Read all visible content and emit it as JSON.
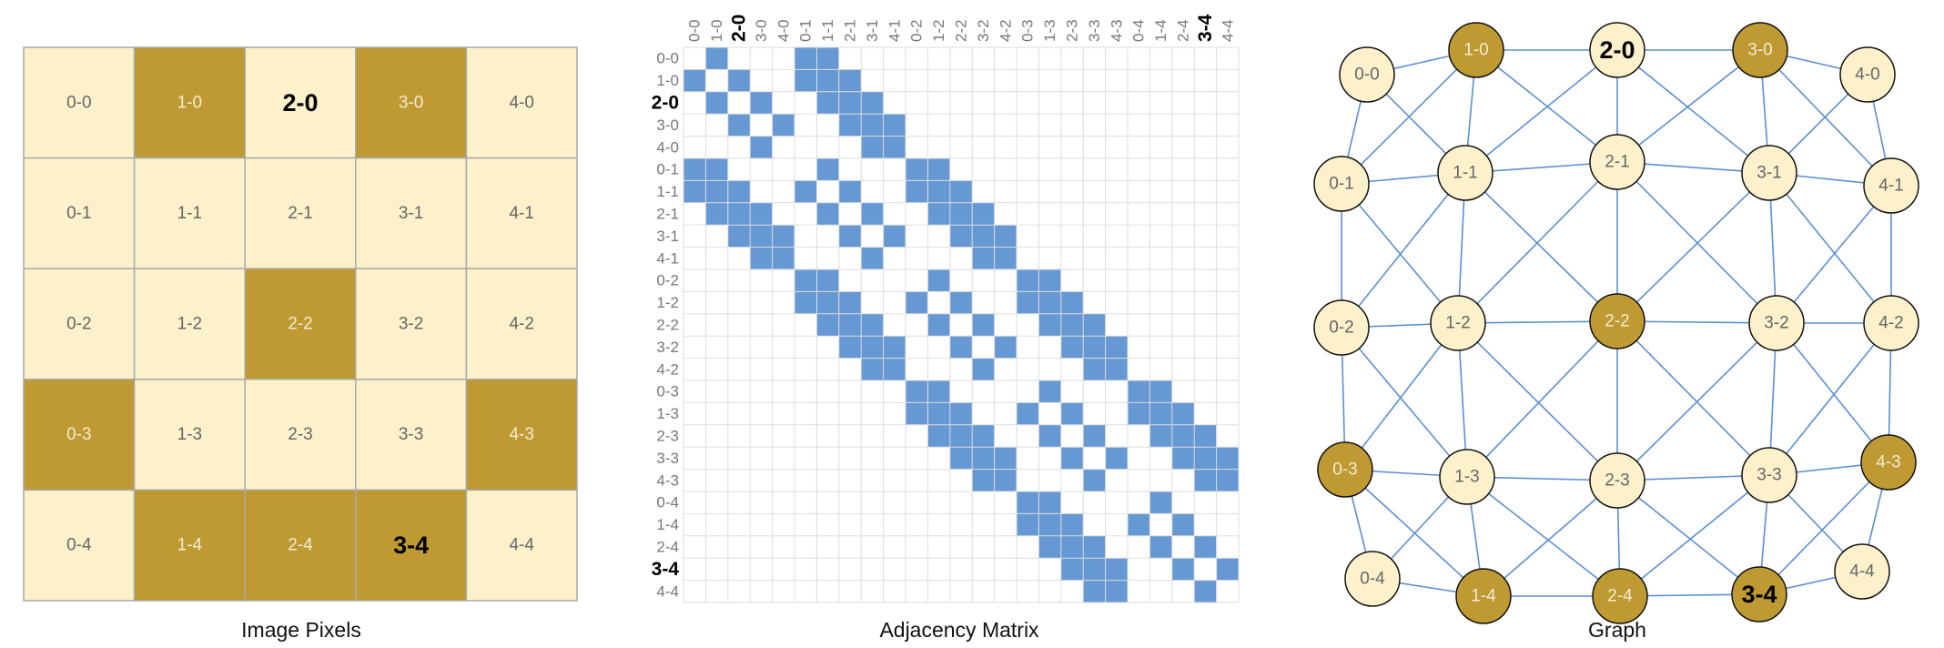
{
  "colors": {
    "light": "#fdf1cc",
    "dark": "#bf9a33",
    "pixel_border": "#a9a9a9",
    "matrix_fill": "#6699d4",
    "matrix_grid": "#dddddd",
    "edge": "#5b8fd1",
    "node_border": "#111111"
  },
  "panels": {
    "pixels_title": "Image Pixels",
    "matrix_title": "Adjacency Matrix",
    "graph_title": "Graph"
  },
  "nodes": [
    {
      "id": "0-0",
      "label": "0-0",
      "dark": false,
      "bold": false
    },
    {
      "id": "1-0",
      "label": "1-0",
      "dark": true,
      "bold": false
    },
    {
      "id": "2-0",
      "label": "2-0",
      "dark": false,
      "bold": true
    },
    {
      "id": "3-0",
      "label": "3-0",
      "dark": true,
      "bold": false
    },
    {
      "id": "4-0",
      "label": "4-0",
      "dark": false,
      "bold": false
    },
    {
      "id": "0-1",
      "label": "0-1",
      "dark": false,
      "bold": false
    },
    {
      "id": "1-1",
      "label": "1-1",
      "dark": false,
      "bold": false
    },
    {
      "id": "2-1",
      "label": "2-1",
      "dark": false,
      "bold": false
    },
    {
      "id": "3-1",
      "label": "3-1",
      "dark": false,
      "bold": false
    },
    {
      "id": "4-1",
      "label": "4-1",
      "dark": false,
      "bold": false
    },
    {
      "id": "0-2",
      "label": "0-2",
      "dark": false,
      "bold": false
    },
    {
      "id": "1-2",
      "label": "1-2",
      "dark": false,
      "bold": false
    },
    {
      "id": "2-2",
      "label": "2-2",
      "dark": true,
      "bold": false
    },
    {
      "id": "3-2",
      "label": "3-2",
      "dark": false,
      "bold": false
    },
    {
      "id": "4-2",
      "label": "4-2",
      "dark": false,
      "bold": false
    },
    {
      "id": "0-3",
      "label": "0-3",
      "dark": true,
      "bold": false
    },
    {
      "id": "1-3",
      "label": "1-3",
      "dark": false,
      "bold": false
    },
    {
      "id": "2-3",
      "label": "2-3",
      "dark": false,
      "bold": false
    },
    {
      "id": "3-3",
      "label": "3-3",
      "dark": false,
      "bold": false
    },
    {
      "id": "4-3",
      "label": "4-3",
      "dark": true,
      "bold": false
    },
    {
      "id": "0-4",
      "label": "0-4",
      "dark": false,
      "bold": false
    },
    {
      "id": "1-4",
      "label": "1-4",
      "dark": true,
      "bold": false
    },
    {
      "id": "2-4",
      "label": "2-4",
      "dark": true,
      "bold": false
    },
    {
      "id": "3-4",
      "label": "3-4",
      "dark": true,
      "bold": true
    },
    {
      "id": "4-4",
      "label": "4-4",
      "dark": false,
      "bold": false
    }
  ]
}
